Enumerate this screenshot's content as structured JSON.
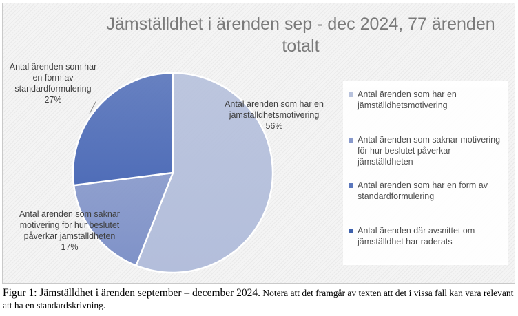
{
  "chart_data": {
    "type": "pie",
    "title": "Jämställdhet i ärenden sep - dec 2024, 77 ärenden totalt",
    "categories": [
      "Antal ärenden som har en jämställdhetsmotivering",
      "Antal ärenden som saknar motivering för hur beslutet påverkar jämställdheten",
      "Antal ärenden som har en form av standardformulering",
      "Antal ärenden där avsnittet om jämställdhet har raderats"
    ],
    "values": [
      56,
      17,
      27,
      0
    ],
    "value_labels": [
      "56%",
      "17%",
      "27%",
      ""
    ],
    "colors": [
      "#b3bedb",
      "#7f92c8",
      "#4f6db8",
      "#2f54a5"
    ],
    "legend_position": "right",
    "data_labels": [
      {
        "text": "Antal ärenden som har en jämställdhetsmotivering",
        "value": "56%"
      },
      {
        "text": "Antal ärenden som saknar motivering för hur beslutet påverkar jämställdheten",
        "value": "17%"
      },
      {
        "text": "Antal ärenden som har en form av standardformulering",
        "value": "27%"
      }
    ]
  },
  "caption": {
    "lead": "Figur 1: Jämställdhet i ärenden september – december 2024.",
    "rest": " Notera att det framgår av texten att det i vissa fall kan vara relevant att ha en standardskrivning."
  }
}
